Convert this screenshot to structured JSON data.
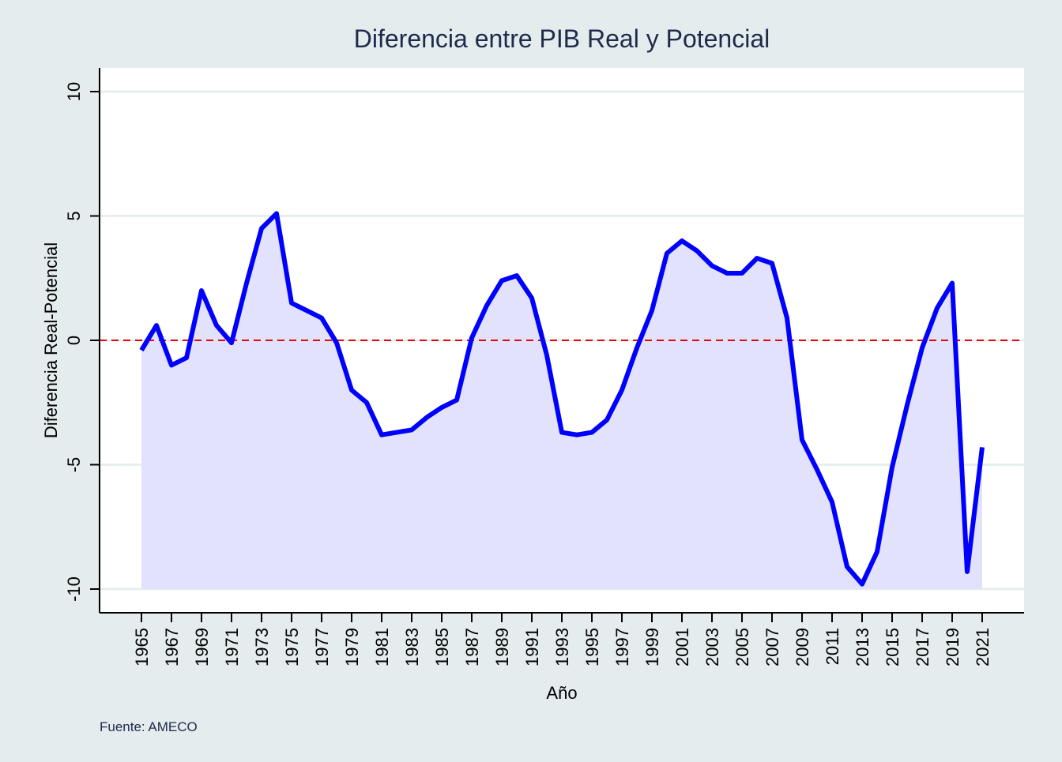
{
  "chart_data": {
    "type": "area",
    "title": "Diferencia entre PIB Real y Potencial",
    "xlabel": "Año",
    "ylabel": "Diferencia Real-Potencial",
    "note": "Fuente: AMECO",
    "ylim": [
      -10,
      10
    ],
    "xlim": [
      1965,
      2021
    ],
    "yticks": [
      -10,
      -5,
      0,
      5,
      10
    ],
    "xticks": [
      1965,
      1967,
      1969,
      1971,
      1973,
      1975,
      1977,
      1979,
      1981,
      1983,
      1985,
      1987,
      1989,
      1991,
      1993,
      1995,
      1997,
      1999,
      2001,
      2003,
      2005,
      2007,
      2009,
      2011,
      2013,
      2015,
      2017,
      2019,
      2021
    ],
    "grid": true,
    "reference_line": {
      "y": 0,
      "style": "dashed",
      "color": "#e8000b"
    },
    "colors": {
      "line": "#0000ff",
      "fill": "#e2e2fd",
      "grid": "#e4ecee",
      "background": "#e4ecee",
      "title": "#1e2a4a"
    },
    "x": [
      1965,
      1966,
      1967,
      1968,
      1969,
      1970,
      1971,
      1972,
      1973,
      1974,
      1975,
      1976,
      1977,
      1978,
      1979,
      1980,
      1981,
      1982,
      1983,
      1984,
      1985,
      1986,
      1987,
      1988,
      1989,
      1990,
      1991,
      1992,
      1993,
      1994,
      1995,
      1996,
      1997,
      1998,
      1999,
      2000,
      2001,
      2002,
      2003,
      2004,
      2005,
      2006,
      2007,
      2008,
      2009,
      2010,
      2011,
      2012,
      2013,
      2014,
      2015,
      2016,
      2017,
      2018,
      2019,
      2020,
      2021
    ],
    "series": [
      {
        "values": [
          -0.4,
          0.6,
          -1.0,
          -0.7,
          2.0,
          0.6,
          -0.1,
          2.3,
          4.5,
          5.1,
          1.5,
          1.2,
          0.9,
          -0.1,
          -2.0,
          -2.5,
          -3.8,
          -3.7,
          -3.6,
          -3.1,
          -2.7,
          -2.4,
          0.1,
          1.4,
          2.4,
          2.6,
          1.7,
          -0.6,
          -3.7,
          -3.8,
          -3.7,
          -3.2,
          -2.0,
          -0.3,
          1.2,
          3.5,
          4.0,
          3.6,
          3.0,
          2.7,
          2.7,
          3.3,
          3.1,
          0.9,
          -4.0,
          -5.2,
          -6.5,
          -9.1,
          -9.8,
          -8.5,
          -5.1,
          -2.6,
          -0.3,
          1.3,
          2.3,
          -9.3,
          -4.3
        ]
      }
    ]
  }
}
